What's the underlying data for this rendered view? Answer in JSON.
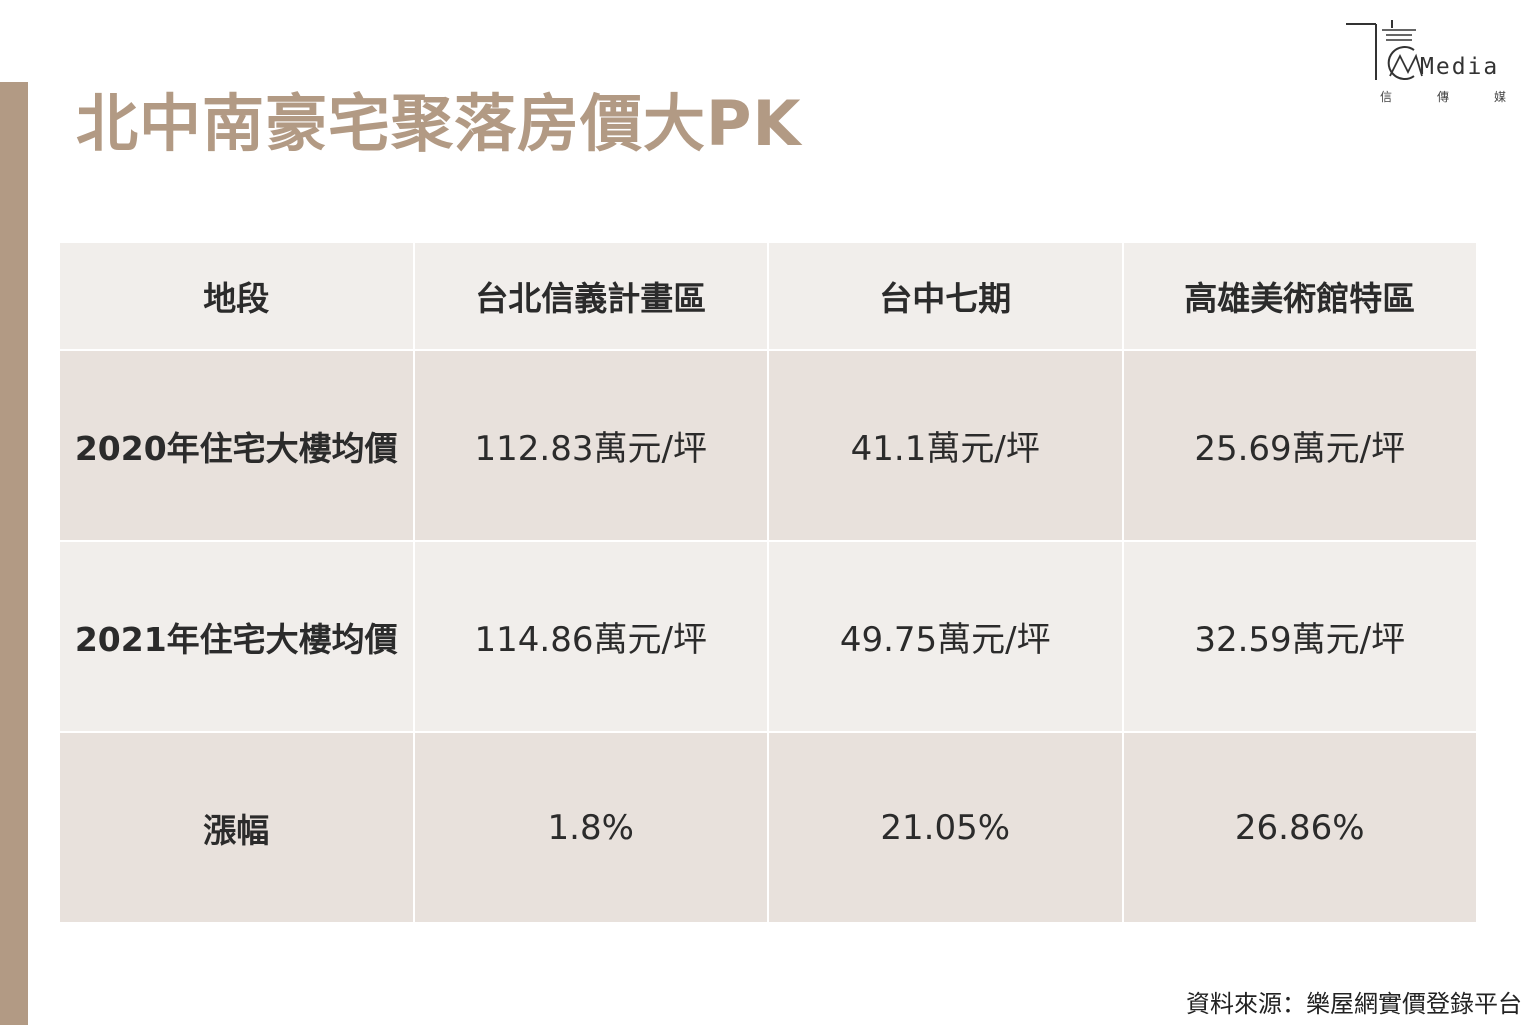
{
  "title": "北中南豪宅聚落房價大PK",
  "logo": {
    "word": "Media",
    "cn": [
      "信",
      "傳",
      "媒"
    ]
  },
  "table": {
    "headers": [
      "地段",
      "台北信義計畫區",
      "台中七期",
      "高雄美術館特區"
    ],
    "rows": [
      {
        "label": "2020年住宅大樓均價",
        "values": [
          "112.83萬元/坪",
          "41.1萬元/坪",
          "25.69萬元/坪"
        ]
      },
      {
        "label": "2021年住宅大樓均價",
        "values": [
          "114.86萬元/坪",
          "49.75萬元/坪",
          "32.59萬元/坪"
        ]
      },
      {
        "label": "漲幅",
        "values": [
          "1.8%",
          "21.05%",
          "26.86%"
        ]
      }
    ]
  },
  "source": "資料來源：樂屋網實價登錄平台",
  "colors": {
    "accent": "#b29a84",
    "header_bg": "#f1eeeb",
    "row_dark_bg": "#e8e1dc",
    "row_light_bg": "#f1eeeb"
  }
}
